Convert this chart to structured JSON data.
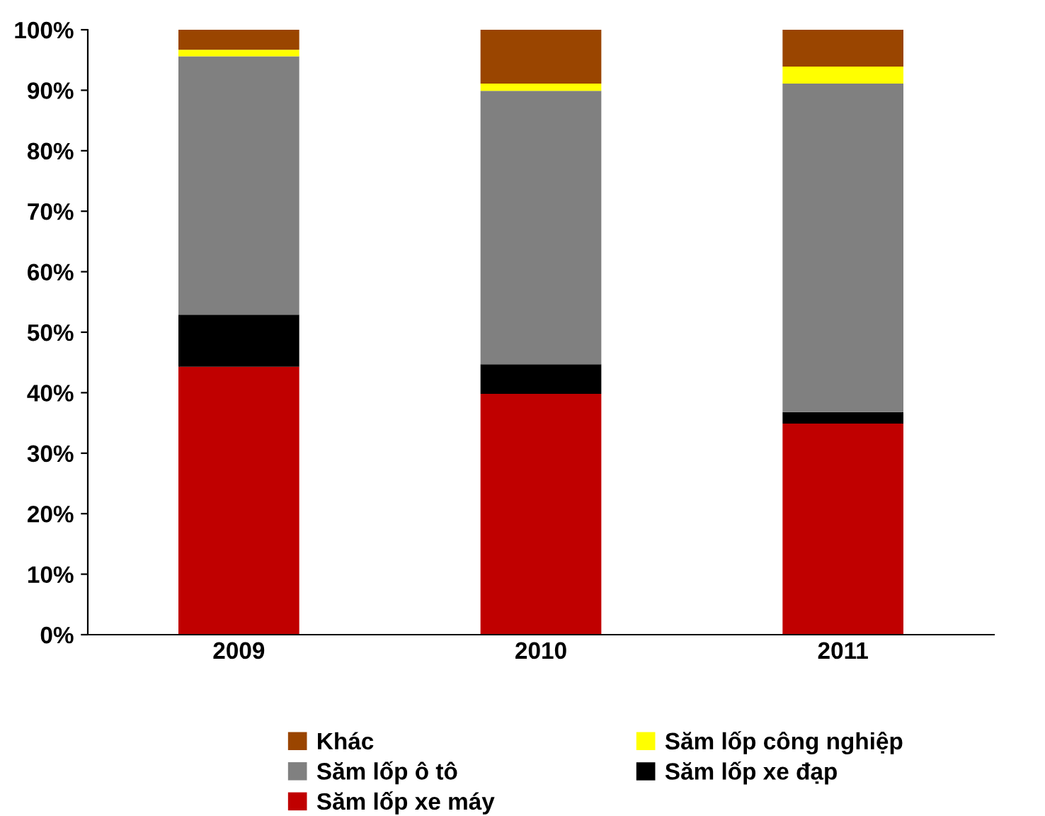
{
  "chart_data": {
    "type": "bar",
    "stacked": true,
    "categories": [
      "2009",
      "2010",
      "2011"
    ],
    "series": [
      {
        "name": "Săm lốp xe máy",
        "color": "#c00000",
        "values": [
          44.3,
          39.8,
          34.9
        ]
      },
      {
        "name": "Săm lốp xe đạp",
        "color": "#000000",
        "values": [
          8.6,
          4.9,
          1.9
        ]
      },
      {
        "name": "Săm lốp ô tô",
        "color": "#808080",
        "values": [
          42.7,
          45.2,
          54.3
        ]
      },
      {
        "name": "Săm lốp công nghiệp",
        "color": "#ffff00",
        "values": [
          1.1,
          1.2,
          2.8
        ]
      },
      {
        "name": "Khác",
        "color": "#9a4500",
        "values": [
          3.3,
          8.9,
          6.1
        ]
      }
    ],
    "ylim": [
      0,
      100
    ],
    "yticks": [
      {
        "value": 0,
        "label": "0%"
      },
      {
        "value": 10,
        "label": "10%"
      },
      {
        "value": 20,
        "label": "20%"
      },
      {
        "value": 30,
        "label": "30%"
      },
      {
        "value": 40,
        "label": "40%"
      },
      {
        "value": 50,
        "label": "50%"
      },
      {
        "value": 60,
        "label": "60%"
      },
      {
        "value": 70,
        "label": "70%"
      },
      {
        "value": 80,
        "label": "80%"
      },
      {
        "value": 90,
        "label": "90%"
      },
      {
        "value": 100,
        "label": "100%"
      }
    ],
    "grid": false,
    "legend": "bottom"
  }
}
